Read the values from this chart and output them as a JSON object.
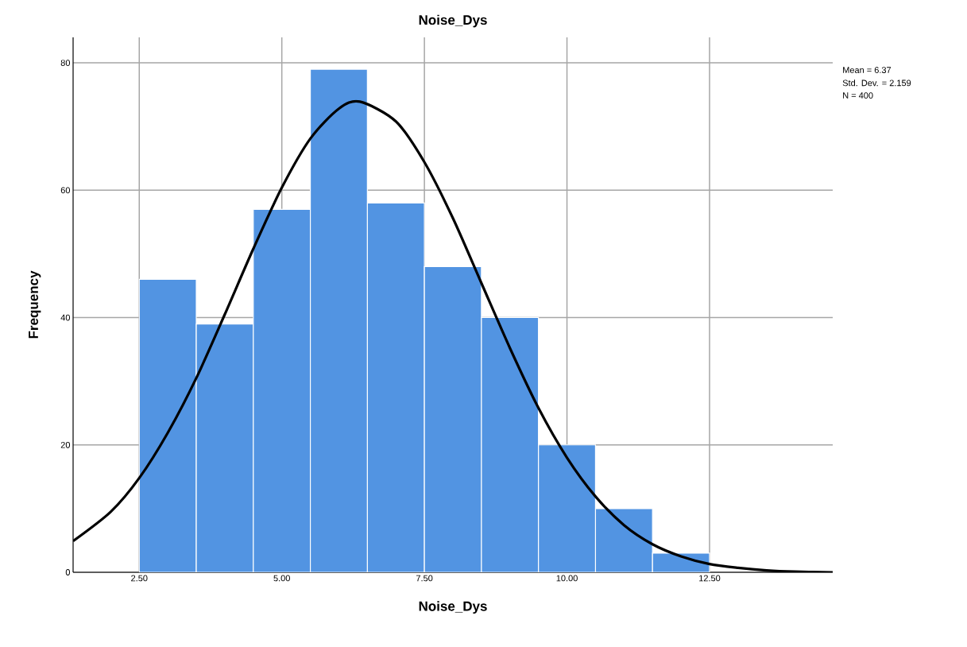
{
  "chart_data": {
    "type": "histogram",
    "title": "Noise_Dys",
    "xlabel": "Noise_Dys",
    "ylabel": "Frequency",
    "bins": [
      2.5,
      3.5,
      4.5,
      5.5,
      6.5,
      7.5,
      8.5,
      9.5,
      10.5,
      11.5,
      12.5
    ],
    "values": [
      46,
      39,
      57,
      79,
      58,
      48,
      40,
      20,
      10,
      3
    ],
    "color": "#5294e2",
    "series": [
      {
        "type": "line",
        "color": "#000000",
        "x": [
          1.34,
          2,
          2.5,
          3,
          3.5,
          4,
          4.5,
          5,
          5.5,
          6,
          6.37,
          7,
          7.5,
          8,
          8.5,
          9,
          9.5,
          10,
          10.5,
          11,
          11.5,
          12,
          12.5,
          13,
          13.5,
          14,
          14.66
        ],
        "values": [
          4.9,
          9.5,
          14.8,
          21.9,
          30.5,
          40.5,
          50.8,
          60.4,
          68.1,
          72.8,
          73.9,
          70.8,
          64.4,
          55.6,
          45.4,
          35.2,
          25.8,
          18.0,
          11.9,
          7.4,
          4.4,
          2.5,
          1.3,
          0.7,
          0.3,
          0.1,
          0.0
        ]
      }
    ],
    "xlim": [
      1.34,
      14.66
    ],
    "ylim": [
      0,
      84
    ],
    "xticks": [
      {
        "value": 2.5,
        "label": "2.50"
      },
      {
        "value": 5,
        "label": "5.00"
      },
      {
        "value": 7.5,
        "label": "7.50"
      },
      {
        "value": 10,
        "label": "10.00"
      },
      {
        "value": 12.5,
        "label": "12.50"
      }
    ],
    "yticks": [
      0,
      20,
      40,
      60,
      80
    ],
    "grid": true,
    "annotations": [
      "Mean = 6.37",
      "Std. Dev. = 2.159",
      "N = 400"
    ]
  }
}
